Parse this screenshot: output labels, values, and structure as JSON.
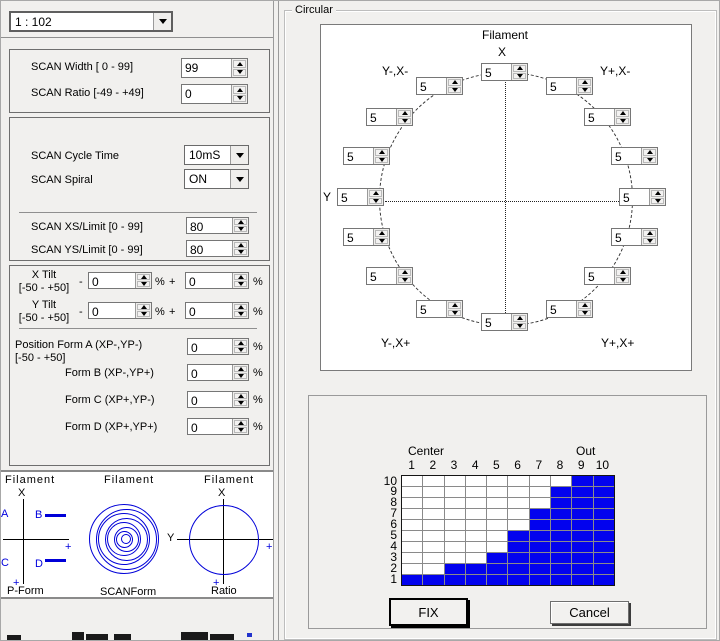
{
  "left_panel": {
    "preset_dropdown": {
      "value": "1 : 102"
    },
    "scan_group": {
      "width_label": "SCAN Width [ 0 - 99]",
      "width_value": "99",
      "ratio_label": "SCAN Ratio [-49 - +49]",
      "ratio_value": "0"
    },
    "cycle_group": {
      "cycle_label": "SCAN Cycle Time",
      "cycle_value": "10mS",
      "spiral_label": "SCAN Spiral",
      "spiral_value": "ON",
      "xs_label": "SCAN XS/Limit [0 - 99]",
      "xs_value": "80",
      "ys_label": "SCAN YS/Limit [0 - 99]",
      "ys_value": "80"
    },
    "tilt_group": {
      "x_tilt_label": "X Tilt",
      "x_tilt_range": "[-50 - +50]",
      "y_tilt_label": "Y Tilt",
      "y_tilt_range": "[-50 - +50]",
      "minus": "-",
      "plus": "+",
      "percent": "%",
      "x_tilt_minus_value": "0",
      "x_tilt_plus_value": "0",
      "y_tilt_minus_value": "0",
      "y_tilt_plus_value": "0",
      "position_form_a_label": "Position Form A (XP-,YP-)",
      "position_form_range": "[-50 - +50]",
      "form_b_label": "Form B (XP-,YP+)",
      "form_c_label": "Form C (XP+,YP-)",
      "form_d_label": "Form D (XP+,YP+)",
      "form_a_value": "0",
      "form_b_value": "0",
      "form_c_value": "0",
      "form_d_value": "0"
    },
    "diagrams": {
      "p_form": {
        "title": "Filament",
        "x_label": "X",
        "a": "A",
        "b": "B",
        "c": "C",
        "d": "D",
        "plus_h": "+",
        "plus_v": "+",
        "caption": "P-Form"
      },
      "scan_form": {
        "title": "Filament",
        "caption": "SCANForm"
      },
      "ratio": {
        "title": "Filament",
        "x_label": "X",
        "y_label": "Y",
        "plus_h": "+",
        "plus_v": "+",
        "caption": "Ratio"
      }
    },
    "accent_blue": "#0000d8"
  },
  "circular": {
    "group_label": "Circular",
    "title": "Filament",
    "x_label": "X",
    "y_label": "Y",
    "corner_labels": {
      "top_left": "Y-,X-",
      "top_right": "Y+,X-",
      "bottom_left": "Y-,X+",
      "bottom_right": "Y+,X+"
    },
    "spinners": [
      {
        "position": "n",
        "value": "5"
      },
      {
        "position": "nne",
        "value": "5"
      },
      {
        "position": "ne",
        "value": "5"
      },
      {
        "position": "ene",
        "value": "5"
      },
      {
        "position": "e",
        "value": "5"
      },
      {
        "position": "ese",
        "value": "5"
      },
      {
        "position": "se",
        "value": "5"
      },
      {
        "position": "sse",
        "value": "5"
      },
      {
        "position": "s",
        "value": "5"
      },
      {
        "position": "ssw",
        "value": "5"
      },
      {
        "position": "sw",
        "value": "5"
      },
      {
        "position": "wsw",
        "value": "5"
      },
      {
        "position": "w",
        "value": "5"
      },
      {
        "position": "wnw",
        "value": "5"
      },
      {
        "position": "nw",
        "value": "5"
      },
      {
        "position": "nnw",
        "value": "5"
      }
    ]
  },
  "grid_panel": {
    "fix_label": "FIX",
    "cancel_label": "Cancel"
  },
  "chart_data": {
    "type": "heatmap",
    "title": "",
    "x_label_left": "Center",
    "x_label_right": "Out",
    "columns": [
      "1",
      "2",
      "3",
      "4",
      "5",
      "6",
      "7",
      "8",
      "9",
      "10"
    ],
    "rows_top_to_bottom": [
      "10",
      "9",
      "8",
      "7",
      "6",
      "5",
      "4",
      "3",
      "2",
      "1"
    ],
    "fill_heights_per_column": [
      1,
      1,
      2,
      2,
      3,
      5,
      7,
      9,
      10,
      10
    ],
    "fill_color": "#0202ee",
    "empty_color": "#ffffff",
    "note": "cell in column c / row r (rows counted from bottom) is filled when r <= fill_heights_per_column[c-1]"
  }
}
